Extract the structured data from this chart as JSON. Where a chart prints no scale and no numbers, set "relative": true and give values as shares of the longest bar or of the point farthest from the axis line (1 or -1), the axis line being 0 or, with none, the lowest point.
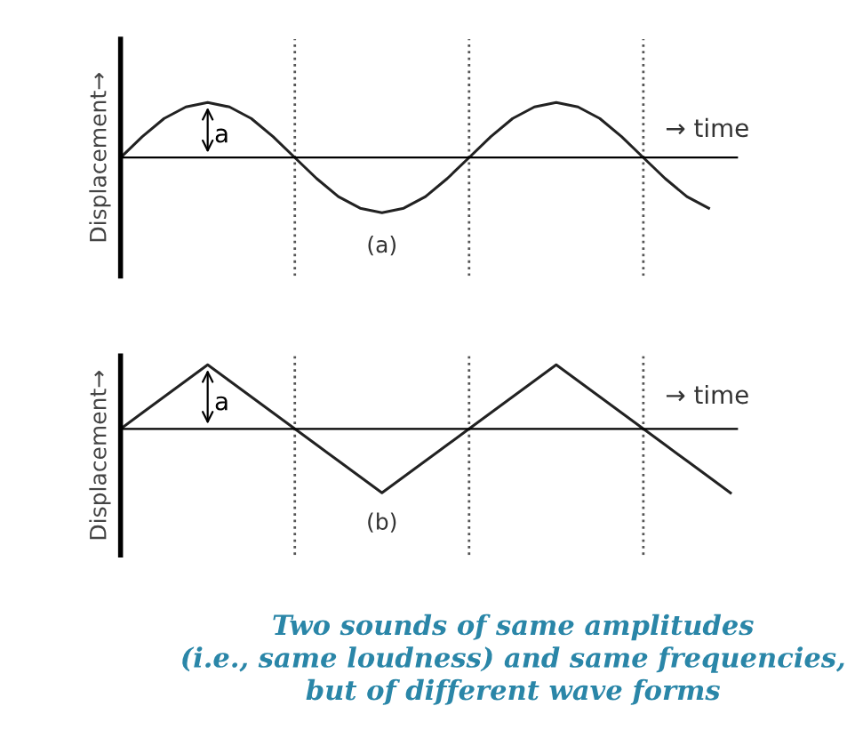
{
  "chart_data": [
    {
      "type": "line",
      "relative": true,
      "ylabel": "Displacement→",
      "color": "#222222",
      "legend": false,
      "marker": "none",
      "line_style": "solid",
      "grid": "x",
      "categories": [
        null,
        null,
        null,
        null,
        null,
        null,
        null,
        null,
        null,
        null,
        null,
        null,
        null,
        null,
        null,
        null,
        null,
        null,
        null,
        null,
        null,
        null,
        null,
        null,
        null,
        null,
        null,
        null
      ],
      "values": [
        0,
        0.38,
        0.71,
        0.92,
        1,
        0.92,
        0.71,
        0.38,
        0,
        -0.38,
        -0.71,
        -0.92,
        -1,
        -0.92,
        -0.71,
        -0.38,
        0,
        0.38,
        0.71,
        0.92,
        1,
        0.92,
        0.71,
        0.38,
        0,
        -0.38,
        -0.71,
        -0.92
      ],
      "annotations": [
        "a",
        "(a)",
        "→ time"
      ]
    },
    {
      "type": "line",
      "relative": true,
      "ylabel": "Displacement→",
      "color": "#222222",
      "legend": false,
      "marker": "none",
      "line_style": "solid",
      "grid": "x",
      "categories": [
        null,
        null,
        null,
        null,
        null,
        null,
        null,
        null,
        null,
        null,
        null,
        null,
        null,
        null,
        null,
        null,
        null,
        null,
        null,
        null,
        null,
        null,
        null,
        null,
        null,
        null,
        null,
        null,
        null
      ],
      "values": [
        0,
        0.25,
        0.5,
        0.75,
        1,
        0.75,
        0.5,
        0.25,
        0,
        -0.25,
        -0.5,
        -0.75,
        -1,
        -0.75,
        -0.5,
        -0.25,
        0,
        0.25,
        0.5,
        0.75,
        1,
        0.75,
        0.5,
        0.25,
        0,
        -0.25,
        -0.5,
        -0.75,
        -1
      ],
      "annotations": [
        "a",
        "(b)",
        "→ time",
        "Two sounds of same amplitudes\n(i.e., same loudness) and same frequencies,\nbut of different wave forms"
      ]
    }
  ]
}
